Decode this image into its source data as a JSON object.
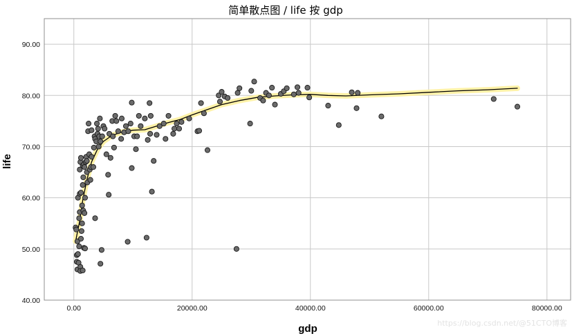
{
  "chart_data": {
    "type": "scatter",
    "title": "简单散点图 / life 按 gdp",
    "xlabel": "gdp",
    "ylabel": "life",
    "xlim": [
      -5000,
      84000
    ],
    "ylim": [
      40,
      95
    ],
    "xticks": [
      "0.00",
      "20000.00",
      "40000.00",
      "60000.00",
      "80000.00"
    ],
    "yticks": [
      "40.00",
      "50.00",
      "60.00",
      "70.00",
      "80.00",
      "90.00"
    ],
    "grid": true,
    "colors": {
      "points": "#6b6b6b",
      "point_edge": "#1a1a1a",
      "fit_line": "#000000",
      "fit_halo": "#fff2a8",
      "grid": "#c8c8c8"
    },
    "points": [
      [
        300,
        54.2
      ],
      [
        400,
        53.8
      ],
      [
        500,
        47.5
      ],
      [
        500,
        48.8
      ],
      [
        600,
        51.5
      ],
      [
        600,
        46.0
      ],
      [
        700,
        60.0
      ],
      [
        700,
        49.0
      ],
      [
        800,
        47.3
      ],
      [
        900,
        50.5
      ],
      [
        900,
        56.0
      ],
      [
        1000,
        57.2
      ],
      [
        1000,
        60.8
      ],
      [
        1000,
        65.5
      ],
      [
        1100,
        46.5
      ],
      [
        1100,
        45.7
      ],
      [
        1100,
        67.0
      ],
      [
        1200,
        52.0
      ],
      [
        1200,
        61.0
      ],
      [
        1200,
        67.8
      ],
      [
        1300,
        53.5
      ],
      [
        1400,
        58.5
      ],
      [
        1400,
        55.0
      ],
      [
        1500,
        62.5
      ],
      [
        1500,
        45.8
      ],
      [
        1500,
        66.3
      ],
      [
        1600,
        57.5
      ],
      [
        1600,
        64.0
      ],
      [
        1700,
        66.5
      ],
      [
        1700,
        50.2
      ],
      [
        1800,
        66.0
      ],
      [
        1800,
        57.0
      ],
      [
        1900,
        50.1
      ],
      [
        1900,
        60.0
      ],
      [
        2000,
        67.0
      ],
      [
        2100,
        68.0
      ],
      [
        2200,
        65.0
      ],
      [
        2200,
        67.2
      ],
      [
        2300,
        63.0
      ],
      [
        2400,
        73.0
      ],
      [
        2500,
        74.5
      ],
      [
        2600,
        68.5
      ],
      [
        2700,
        65.5
      ],
      [
        2800,
        63.5
      ],
      [
        2900,
        66.0
      ],
      [
        3000,
        68.0
      ],
      [
        3000,
        73.2
      ],
      [
        3300,
        66.0
      ],
      [
        3400,
        69.8
      ],
      [
        3500,
        72.0
      ],
      [
        3600,
        71.5
      ],
      [
        3600,
        56.0
      ],
      [
        3800,
        71.0
      ],
      [
        3900,
        74.5
      ],
      [
        4000,
        72.5
      ],
      [
        4100,
        73.5
      ],
      [
        4200,
        70.0
      ],
      [
        4300,
        72.0
      ],
      [
        4400,
        75.5
      ],
      [
        4500,
        71.0
      ],
      [
        4500,
        47.1
      ],
      [
        4700,
        49.8
      ],
      [
        4800,
        72.0
      ],
      [
        5000,
        74.0
      ],
      [
        5200,
        73.5
      ],
      [
        5500,
        68.5
      ],
      [
        5800,
        64.5
      ],
      [
        5900,
        60.6
      ],
      [
        6000,
        72.5
      ],
      [
        6200,
        67.8
      ],
      [
        6500,
        75.0
      ],
      [
        6600,
        72.0
      ],
      [
        6800,
        69.8
      ],
      [
        7000,
        76.0
      ],
      [
        7200,
        75.0
      ],
      [
        7500,
        73.0
      ],
      [
        8000,
        71.5
      ],
      [
        8100,
        75.5
      ],
      [
        8500,
        72.8
      ],
      [
        8800,
        74.0
      ],
      [
        9100,
        51.4
      ],
      [
        9200,
        73.0
      ],
      [
        9600,
        74.5
      ],
      [
        9800,
        65.8
      ],
      [
        9800,
        78.6
      ],
      [
        10200,
        72.0
      ],
      [
        10500,
        69.5
      ],
      [
        10700,
        72.0
      ],
      [
        11000,
        76.0
      ],
      [
        11300,
        74.0
      ],
      [
        12000,
        75.5
      ],
      [
        12300,
        52.2
      ],
      [
        12500,
        71.3
      ],
      [
        12800,
        78.5
      ],
      [
        12900,
        72.5
      ],
      [
        13000,
        76.0
      ],
      [
        13200,
        61.2
      ],
      [
        13500,
        67.2
      ],
      [
        14000,
        72.3
      ],
      [
        14500,
        74.0
      ],
      [
        15200,
        74.5
      ],
      [
        15500,
        71.5
      ],
      [
        16000,
        76.0
      ],
      [
        16800,
        72.5
      ],
      [
        17000,
        73.5
      ],
      [
        17400,
        74.5
      ],
      [
        17800,
        73.5
      ],
      [
        18200,
        74.8
      ],
      [
        19500,
        75.5
      ],
      [
        20900,
        73.0
      ],
      [
        21200,
        73.1
      ],
      [
        21500,
        78.5
      ],
      [
        22000,
        76.5
      ],
      [
        22600,
        69.3
      ],
      [
        24500,
        80.0
      ],
      [
        24700,
        78.8
      ],
      [
        25000,
        80.7
      ],
      [
        25500,
        79.8
      ],
      [
        26000,
        79.5
      ],
      [
        27500,
        50.0
      ],
      [
        27700,
        80.5
      ],
      [
        28000,
        81.4
      ],
      [
        29800,
        74.5
      ],
      [
        30000,
        80.9
      ],
      [
        30500,
        82.7
      ],
      [
        31500,
        79.5
      ],
      [
        32000,
        79.0
      ],
      [
        32500,
        80.5
      ],
      [
        33000,
        80.0
      ],
      [
        33500,
        81.5
      ],
      [
        34000,
        78.2
      ],
      [
        35000,
        80.3
      ],
      [
        35500,
        80.8
      ],
      [
        36000,
        81.4
      ],
      [
        37200,
        80.2
      ],
      [
        37800,
        81.6
      ],
      [
        38000,
        80.5
      ],
      [
        39500,
        81.5
      ],
      [
        39800,
        79.6
      ],
      [
        43000,
        78.0
      ],
      [
        44800,
        74.2
      ],
      [
        47000,
        80.6
      ],
      [
        47800,
        77.5
      ],
      [
        48000,
        80.5
      ],
      [
        52000,
        75.9
      ],
      [
        71000,
        79.3
      ],
      [
        75000,
        77.8
      ]
    ],
    "fit_line": [
      [
        300,
        51.5
      ],
      [
        1000,
        55.5
      ],
      [
        1500,
        59.5
      ],
      [
        2200,
        63.5
      ],
      [
        3000,
        67.0
      ],
      [
        4000,
        69.5
      ],
      [
        5000,
        71.0
      ],
      [
        6500,
        72.2
      ],
      [
        8000,
        72.8
      ],
      [
        10000,
        73.2
      ],
      [
        12000,
        73.3
      ],
      [
        14000,
        74.0
      ],
      [
        16000,
        74.7
      ],
      [
        18000,
        75.3
      ],
      [
        20000,
        76.2
      ],
      [
        22000,
        77.0
      ],
      [
        25000,
        78.2
      ],
      [
        28000,
        79.0
      ],
      [
        31000,
        79.6
      ],
      [
        34000,
        79.9
      ],
      [
        37000,
        80.1
      ],
      [
        40000,
        80.2
      ],
      [
        43000,
        80.0
      ],
      [
        46000,
        79.9
      ],
      [
        50000,
        80.1
      ],
      [
        55000,
        80.3
      ],
      [
        60000,
        80.6
      ],
      [
        65000,
        80.9
      ],
      [
        70000,
        81.1
      ],
      [
        75000,
        81.4
      ]
    ]
  },
  "watermark": "https://blog.csdn.net/@51CTO博客"
}
